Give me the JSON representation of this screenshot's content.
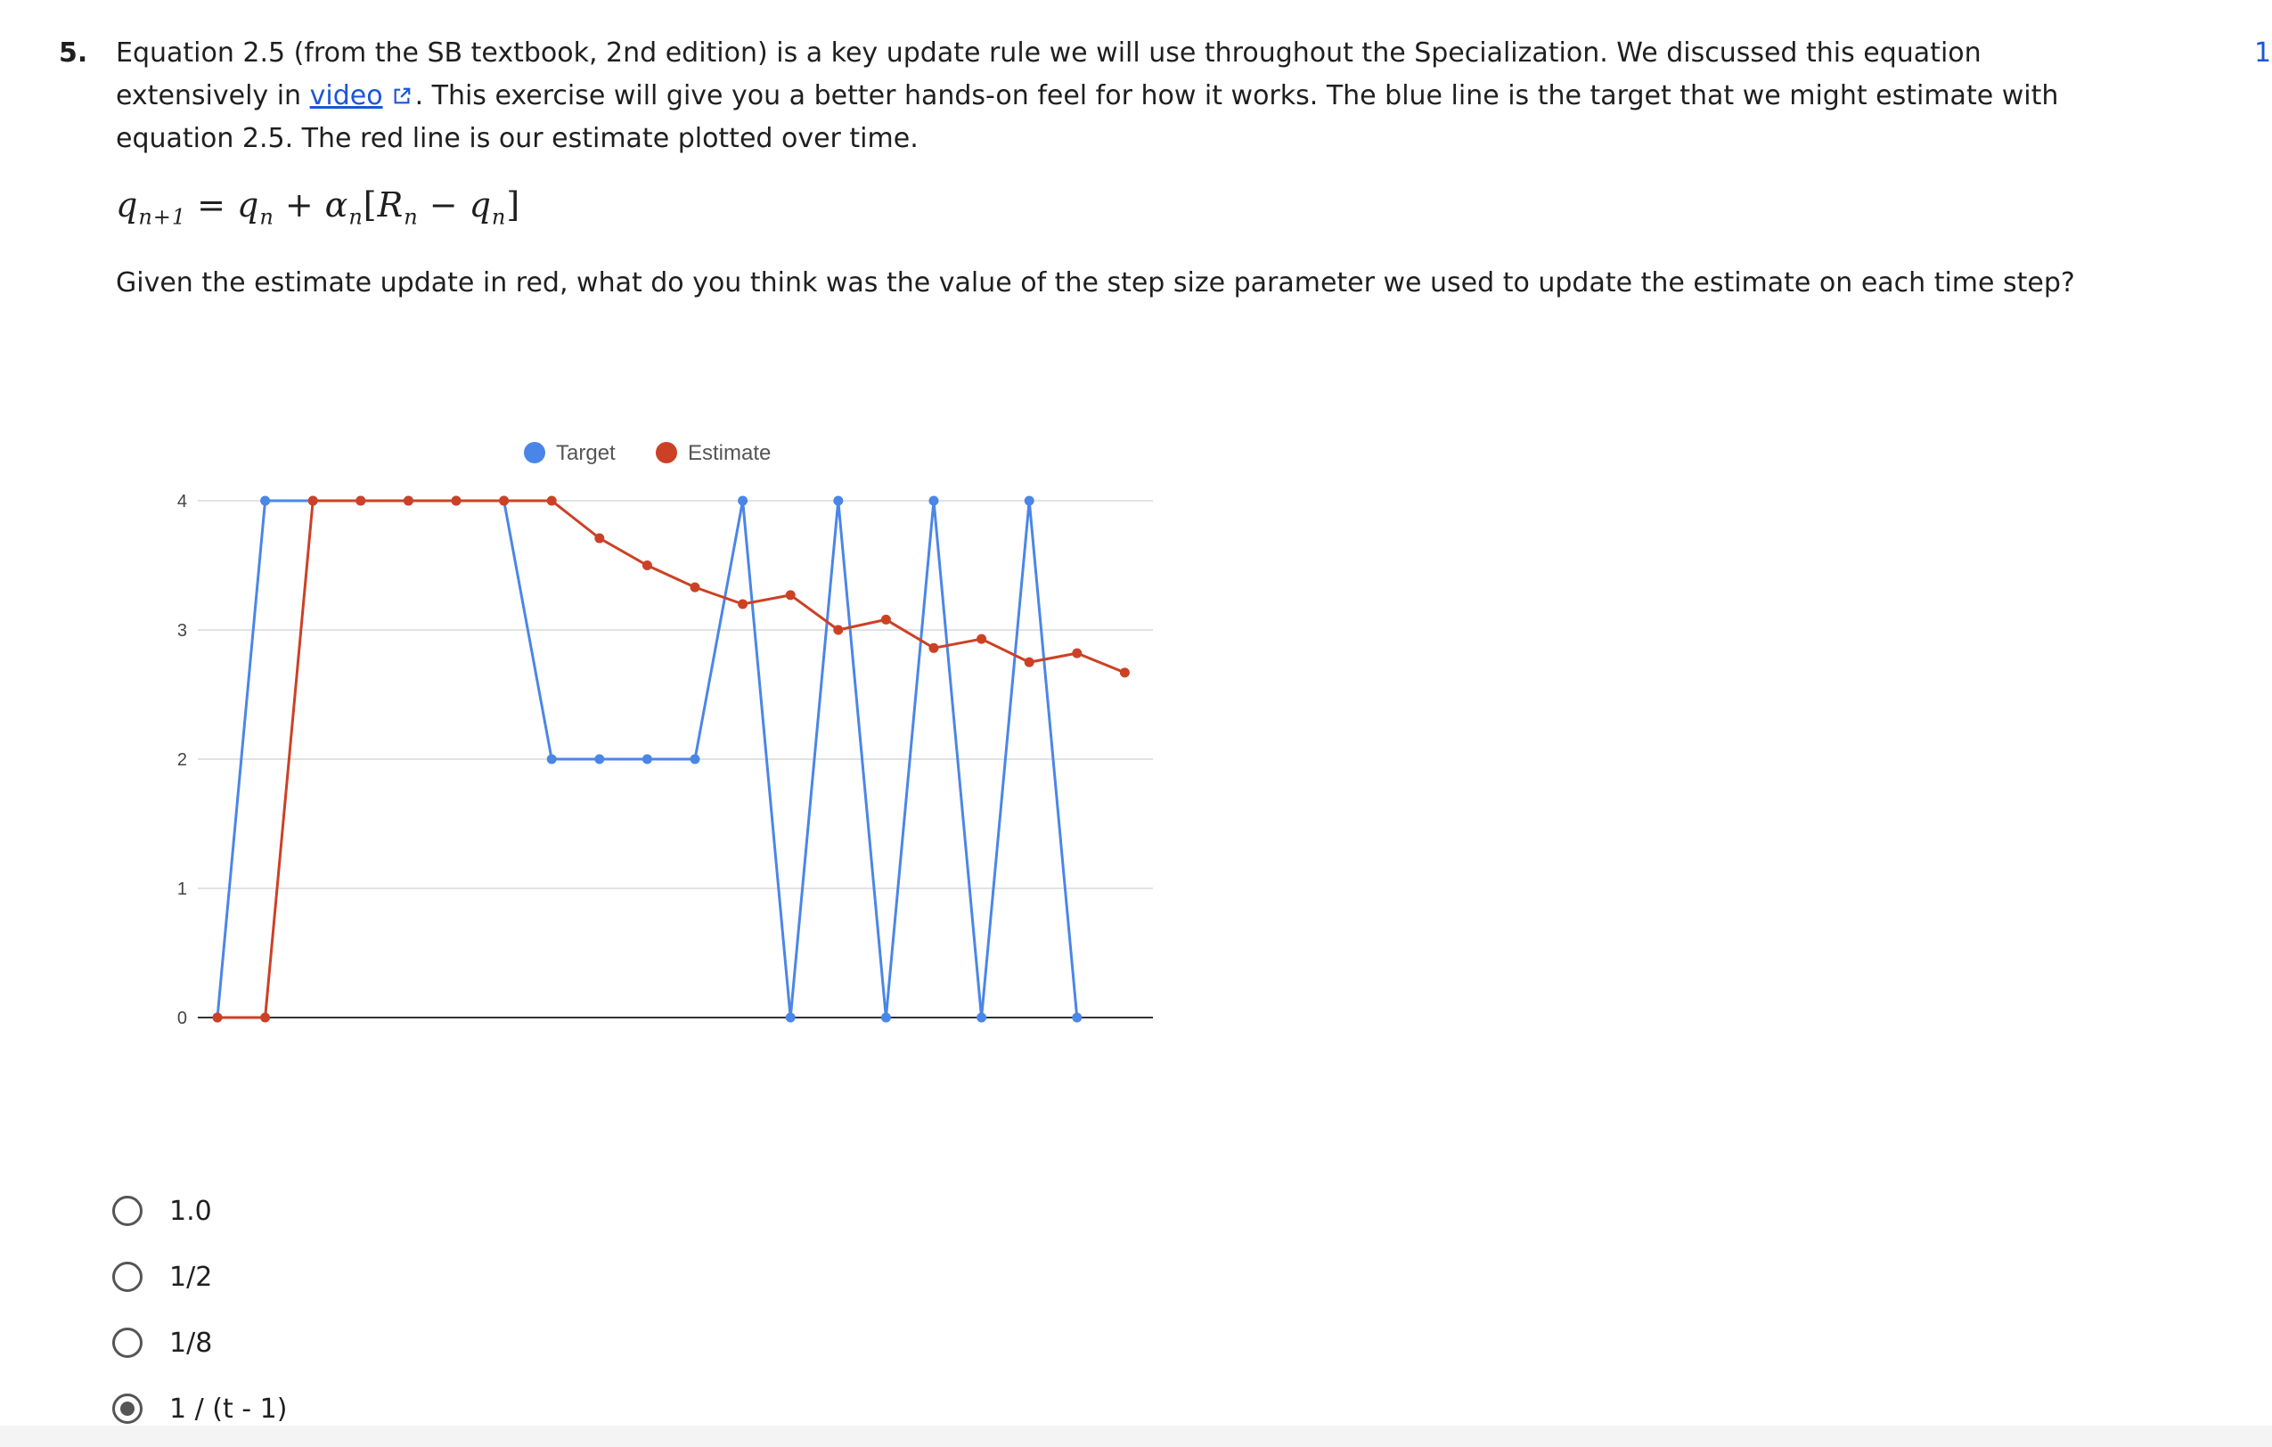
{
  "question": {
    "number": "5.",
    "points": "1",
    "text_before_link": "Equation 2.5 (from the SB textbook, 2nd edition) is a key update rule we will use throughout the Specialization. We discussed this equation extensively in ",
    "link_text": "video",
    "text_after_link": ". This exercise will give you a better hands-on feel for how it works. The blue line is the target that we might estimate with equation 2.5. The red line is our estimate plotted over time.",
    "formula": {
      "lhs": "q",
      "lhs_sub": "n+1",
      "eq": "=",
      "t1": "q",
      "t1_sub": "n",
      "plus": "+",
      "alpha": "α",
      "alpha_sub": "n",
      "lbracket": "[",
      "r": "R",
      "r_sub": "n",
      "minus": "−",
      "t2": "q",
      "t2_sub": "n",
      "rbracket": "]"
    },
    "prompt": "Given the estimate update in red, what do you think was the value of the step size parameter we used to update the estimate on each time step?"
  },
  "chart_data": {
    "type": "line",
    "x": [
      1,
      2,
      3,
      4,
      5,
      6,
      7,
      8,
      9,
      10,
      11,
      12,
      13,
      14,
      15,
      16,
      17,
      18,
      19,
      20
    ],
    "series": [
      {
        "name": "Target",
        "color": "#4a86e8",
        "values": [
          0,
          4,
          4,
          4,
          4,
          4,
          4,
          2,
          2,
          2,
          2,
          4,
          0,
          4,
          0,
          4,
          0,
          4,
          0,
          null
        ]
      },
      {
        "name": "Estimate",
        "color": "#cc4125",
        "values": [
          0,
          0,
          4,
          4,
          4,
          4,
          4,
          4,
          3.71,
          3.5,
          3.33,
          3.2,
          3.27,
          3.0,
          3.08,
          2.86,
          2.93,
          2.75,
          2.82,
          2.67
        ]
      }
    ],
    "yticks": [
      "0",
      "1",
      "2",
      "3",
      "4"
    ],
    "ylim": [
      0,
      4
    ],
    "legend_position": "top-center",
    "grid": true
  },
  "options": [
    {
      "label": "1.0",
      "checked": false
    },
    {
      "label": "1/2",
      "checked": false
    },
    {
      "label": "1/8",
      "checked": false
    },
    {
      "label": "1 / (t - 1)",
      "checked": true
    }
  ],
  "colors": {
    "link": "#1c56d8",
    "target": "#4a86e8",
    "estimate": "#cc4125"
  }
}
